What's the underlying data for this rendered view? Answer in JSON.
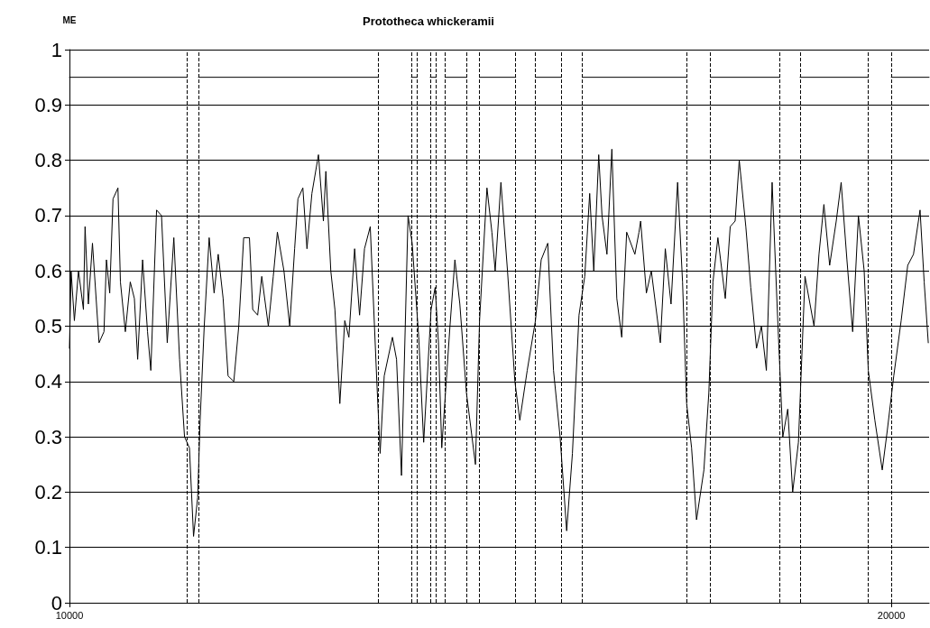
{
  "chart_data": {
    "type": "line",
    "title": "Prototheca whickeramii",
    "ylabel": "ME",
    "xlim": [
      10000,
      20460
    ],
    "xticks": [
      10000,
      20000
    ],
    "ylim": [
      0,
      1
    ],
    "yticks": [
      0,
      0.1,
      0.2,
      0.3,
      0.4,
      0.5,
      0.6,
      0.7,
      0.8,
      0.9,
      1
    ],
    "grid": "y",
    "marker": "none",
    "line_style": "solid",
    "series": [
      {
        "color": "#000000",
        "x": [
          10000,
          10020,
          10060,
          10110,
          10170,
          10190,
          10230,
          10280,
          10360,
          10420,
          10450,
          10490,
          10530,
          10590,
          10620,
          10680,
          10740,
          10790,
          10830,
          10890,
          10950,
          10990,
          11060,
          11120,
          11190,
          11270,
          11340,
          11400,
          11460,
          11510,
          11560,
          11590,
          11640,
          11700,
          11760,
          11810,
          11870,
          11930,
          12000,
          12060,
          12120,
          12190,
          12230,
          12290,
          12340,
          12420,
          12480,
          12530,
          12610,
          12680,
          12740,
          12780,
          12840,
          12890,
          12950,
          13030,
          13090,
          13120,
          13180,
          13230,
          13290,
          13350,
          13400,
          13470,
          13530,
          13590,
          13660,
          13740,
          13780,
          13830,
          13930,
          13980,
          14040,
          14120,
          14170,
          14250,
          14310,
          14400,
          14450,
          14490,
          14530,
          14630,
          14690,
          14750,
          14830,
          14940,
          14990,
          15080,
          15140,
          15180,
          15250,
          15330,
          15420,
          15480,
          15570,
          15670,
          15740,
          15820,
          15890,
          15970,
          16050,
          16120,
          16200,
          16270,
          16330,
          16380,
          16440,
          16480,
          16540,
          16600,
          16660,
          16720,
          16780,
          16880,
          16930,
          16950,
          17020,
          17080,
          17190,
          17250,
          17320,
          17400,
          17460,
          17510,
          17570,
          17630,
          17720,
          17780,
          17830,
          17890,
          17980,
          18040,
          18100,
          18150,
          18230,
          18290,
          18360,
          18420,
          18480,
          18550,
          18610,
          18680,
          18740,
          18800,
          18870,
          18950,
          19060,
          19120,
          19180,
          19250,
          19330,
          19390,
          19460,
          19530,
          19600,
          19670,
          19720,
          19800,
          19890,
          19950,
          20030,
          20120,
          20200,
          20270,
          20350,
          20400,
          20450
        ],
        "values": [
          0.46,
          0.6,
          0.51,
          0.6,
          0.53,
          0.68,
          0.54,
          0.65,
          0.47,
          0.49,
          0.62,
          0.56,
          0.73,
          0.75,
          0.58,
          0.49,
          0.58,
          0.55,
          0.44,
          0.62,
          0.49,
          0.42,
          0.71,
          0.7,
          0.47,
          0.66,
          0.44,
          0.3,
          0.28,
          0.12,
          0.19,
          0.33,
          0.5,
          0.66,
          0.56,
          0.63,
          0.55,
          0.41,
          0.4,
          0.5,
          0.66,
          0.66,
          0.53,
          0.52,
          0.59,
          0.5,
          0.59,
          0.67,
          0.6,
          0.5,
          0.64,
          0.73,
          0.75,
          0.64,
          0.74,
          0.81,
          0.69,
          0.78,
          0.6,
          0.53,
          0.36,
          0.51,
          0.48,
          0.64,
          0.52,
          0.64,
          0.68,
          0.4,
          0.27,
          0.41,
          0.48,
          0.44,
          0.23,
          0.7,
          0.65,
          0.48,
          0.29,
          0.53,
          0.57,
          0.47,
          0.28,
          0.5,
          0.62,
          0.54,
          0.38,
          0.25,
          0.51,
          0.75,
          0.67,
          0.6,
          0.76,
          0.6,
          0.4,
          0.33,
          0.42,
          0.51,
          0.62,
          0.65,
          0.42,
          0.3,
          0.13,
          0.27,
          0.52,
          0.59,
          0.74,
          0.6,
          0.81,
          0.7,
          0.63,
          0.82,
          0.55,
          0.48,
          0.67,
          0.63,
          0.67,
          0.69,
          0.56,
          0.6,
          0.47,
          0.64,
          0.54,
          0.76,
          0.58,
          0.36,
          0.28,
          0.15,
          0.24,
          0.38,
          0.58,
          0.66,
          0.55,
          0.68,
          0.69,
          0.8,
          0.68,
          0.57,
          0.46,
          0.5,
          0.42,
          0.76,
          0.54,
          0.3,
          0.35,
          0.2,
          0.29,
          0.59,
          0.5,
          0.63,
          0.72,
          0.61,
          0.69,
          0.76,
          0.62,
          0.49,
          0.7,
          0.6,
          0.42,
          0.33,
          0.24,
          0.31,
          0.41,
          0.51,
          0.61,
          0.63,
          0.71,
          0.58,
          0.47
        ]
      },
      {
        "color": "#000000",
        "x": [
          10000,
          11430,
          11500,
          11570,
          13760,
          13960,
          14160,
          14230,
          14310,
          14390,
          14460,
          14520,
          14570,
          14830,
          14910,
          14990,
          15430,
          15550,
          15670,
          15980,
          16110,
          16240,
          17510,
          17650,
          17800,
          18640,
          18760,
          18890,
          19720,
          19860,
          20000,
          20460
        ],
        "values": [
          0.95,
          0.95,
          null,
          0.95,
          0.95,
          null,
          0.95,
          0.95,
          null,
          0.95,
          0.95,
          null,
          0.95,
          0.95,
          null,
          0.95,
          0.95,
          null,
          0.95,
          0.95,
          null,
          0.95,
          0.95,
          null,
          0.95,
          0.95,
          null,
          0.95,
          0.95,
          null,
          0.95,
          0.95
        ]
      }
    ],
    "ref_lines": [
      {
        "axis": "x",
        "value": 11430,
        "color": "#000000",
        "line_style": "dashed"
      },
      {
        "axis": "x",
        "value": 11570,
        "color": "#000000",
        "line_style": "dashed"
      },
      {
        "axis": "x",
        "value": 13760,
        "color": "#000000",
        "line_style": "dashed"
      },
      {
        "axis": "x",
        "value": 14160,
        "color": "#000000",
        "line_style": "dashed"
      },
      {
        "axis": "x",
        "value": 14230,
        "color": "#000000",
        "line_style": "dashed"
      },
      {
        "axis": "x",
        "value": 14390,
        "color": "#000000",
        "line_style": "dashed"
      },
      {
        "axis": "x",
        "value": 14460,
        "color": "#000000",
        "line_style": "dashed"
      },
      {
        "axis": "x",
        "value": 14570,
        "color": "#000000",
        "line_style": "dashed"
      },
      {
        "axis": "x",
        "value": 14830,
        "color": "#000000",
        "line_style": "dashed"
      },
      {
        "axis": "x",
        "value": 14990,
        "color": "#000000",
        "line_style": "dashed"
      },
      {
        "axis": "x",
        "value": 15430,
        "color": "#000000",
        "line_style": "dashed"
      },
      {
        "axis": "x",
        "value": 15670,
        "color": "#000000",
        "line_style": "dashed"
      },
      {
        "axis": "x",
        "value": 15980,
        "color": "#000000",
        "line_style": "dashed"
      },
      {
        "axis": "x",
        "value": 16240,
        "color": "#000000",
        "line_style": "dashed"
      },
      {
        "axis": "x",
        "value": 17510,
        "color": "#000000",
        "line_style": "dashed"
      },
      {
        "axis": "x",
        "value": 17800,
        "color": "#000000",
        "line_style": "dashed"
      },
      {
        "axis": "x",
        "value": 18640,
        "color": "#000000",
        "line_style": "dashed"
      },
      {
        "axis": "x",
        "value": 18890,
        "color": "#000000",
        "line_style": "dashed"
      },
      {
        "axis": "x",
        "value": 19720,
        "color": "#000000",
        "line_style": "dashed"
      },
      {
        "axis": "x",
        "value": 20000,
        "color": "#000000",
        "line_style": "dashed"
      }
    ]
  }
}
